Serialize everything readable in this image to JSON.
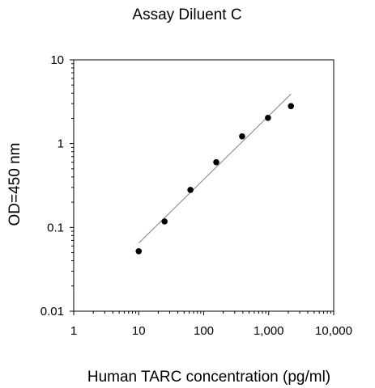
{
  "chart_data": {
    "type": "scatter",
    "title": "Assay Diluent C",
    "xlabel": "Human TARC concentration (pg/ml)",
    "ylabel": "OD=450 nm",
    "xscale": "log",
    "yscale": "log",
    "xlim": [
      1,
      10000
    ],
    "ylim": [
      0.01,
      10
    ],
    "x_ticks": [
      {
        "value": 1,
        "label": "1"
      },
      {
        "value": 10,
        "label": "10"
      },
      {
        "value": 100,
        "label": "100"
      },
      {
        "value": 1000,
        "label": "1,000"
      },
      {
        "value": 10000,
        "label": "10,000"
      }
    ],
    "y_ticks": [
      {
        "value": 0.01,
        "label": "0.01"
      },
      {
        "value": 0.1,
        "label": "0.1"
      },
      {
        "value": 1,
        "label": "1"
      },
      {
        "value": 10,
        "label": "10"
      }
    ],
    "grid": false,
    "legend": "none",
    "series": [
      {
        "x": [
          10,
          25,
          62.5,
          156,
          390,
          975,
          2200
        ],
        "y": [
          0.052,
          0.118,
          0.28,
          0.6,
          1.22,
          2.03,
          2.8
        ],
        "marker": "filled-circle",
        "color": "#000000"
      }
    ],
    "fit_line": {
      "x": [
        10,
        2200
      ],
      "y": [
        0.065,
        3.9
      ],
      "color": "#808080"
    }
  }
}
